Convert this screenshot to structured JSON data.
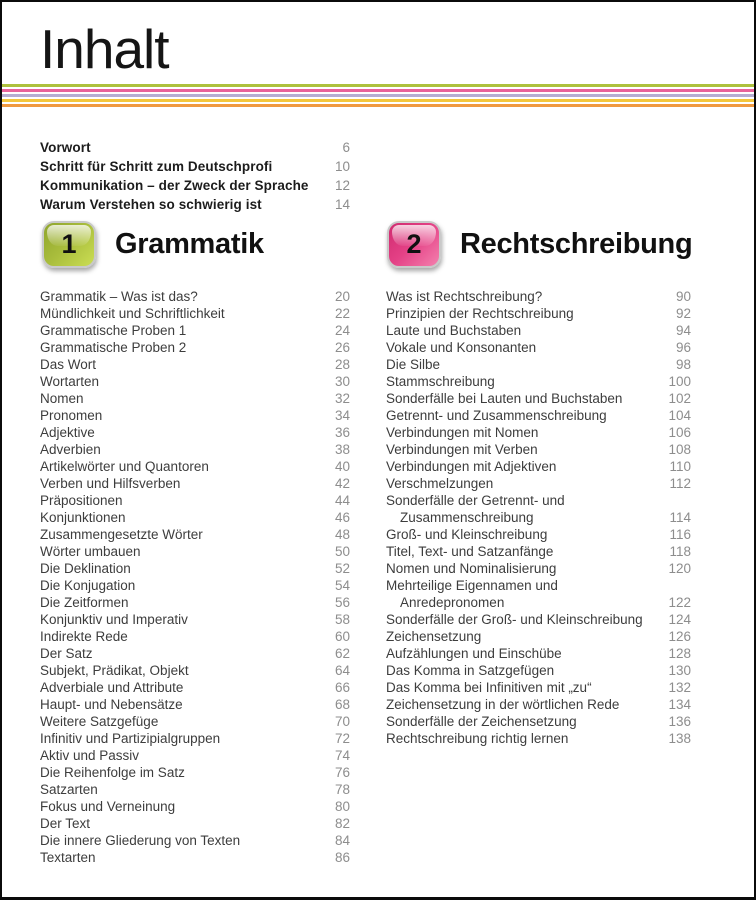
{
  "page": {
    "title": "Inhalt"
  },
  "stripes": {
    "colors": [
      "#aec13d",
      "#e8639a",
      "#b5aed1",
      "#f3c63d",
      "#f0993f"
    ]
  },
  "front_matter": {
    "items": [
      {
        "lines": [
          "Vorwort"
        ],
        "page": "6"
      },
      {
        "lines": [
          "Schritt für Schritt zum Deutschprofi"
        ],
        "page": "10"
      },
      {
        "lines": [
          "Kommunikation – der Zweck der Sprache"
        ],
        "page": "12"
      },
      {
        "lines": [
          "Warum Verstehen so schwierig ist"
        ],
        "page": "14"
      }
    ]
  },
  "chapters": [
    {
      "number": "1",
      "title": "Grammatik",
      "badge_gradient": {
        "from": "#8fa52c",
        "mid": "#a9bd3c",
        "to": "#cbde54"
      },
      "items": [
        {
          "lines": [
            "Grammatik – Was ist das?"
          ],
          "page": "20"
        },
        {
          "lines": [
            "Mündlichkeit und Schriftlichkeit"
          ],
          "page": "22"
        },
        {
          "lines": [
            "Grammatische Proben 1"
          ],
          "page": "24"
        },
        {
          "lines": [
            "Grammatische Proben 2"
          ],
          "page": "26"
        },
        {
          "lines": [
            "Das Wort"
          ],
          "page": "28"
        },
        {
          "lines": [
            "Wortarten"
          ],
          "page": "30"
        },
        {
          "lines": [
            "Nomen"
          ],
          "page": "32"
        },
        {
          "lines": [
            "Pronomen"
          ],
          "page": "34"
        },
        {
          "lines": [
            "Adjektive"
          ],
          "page": "36"
        },
        {
          "lines": [
            "Adverbien"
          ],
          "page": "38"
        },
        {
          "lines": [
            "Artikelwörter und Quantoren"
          ],
          "page": "40"
        },
        {
          "lines": [
            "Verben und Hilfsverben"
          ],
          "page": "42"
        },
        {
          "lines": [
            "Präpositionen"
          ],
          "page": "44"
        },
        {
          "lines": [
            "Konjunktionen"
          ],
          "page": "46"
        },
        {
          "lines": [
            "Zusammengesetzte Wörter"
          ],
          "page": "48"
        },
        {
          "lines": [
            "Wörter umbauen"
          ],
          "page": "50"
        },
        {
          "lines": [
            "Die Deklination"
          ],
          "page": "52"
        },
        {
          "lines": [
            "Die Konjugation"
          ],
          "page": "54"
        },
        {
          "lines": [
            "Die Zeitformen"
          ],
          "page": "56"
        },
        {
          "lines": [
            "Konjunktiv und Imperativ"
          ],
          "page": "58"
        },
        {
          "lines": [
            "Indirekte Rede"
          ],
          "page": "60"
        },
        {
          "lines": [
            "Der Satz"
          ],
          "page": "62"
        },
        {
          "lines": [
            "Subjekt, Prädikat, Objekt"
          ],
          "page": "64"
        },
        {
          "lines": [
            "Adverbiale und Attribute"
          ],
          "page": "66"
        },
        {
          "lines": [
            "Haupt- und Nebensätze"
          ],
          "page": "68"
        },
        {
          "lines": [
            "Weitere Satzgefüge"
          ],
          "page": "70"
        },
        {
          "lines": [
            "Infinitiv und Partizipialgruppen"
          ],
          "page": "72"
        },
        {
          "lines": [
            "Aktiv und Passiv"
          ],
          "page": "74"
        },
        {
          "lines": [
            "Die Reihenfolge im Satz"
          ],
          "page": "76"
        },
        {
          "lines": [
            "Satzarten"
          ],
          "page": "78"
        },
        {
          "lines": [
            "Fokus und Verneinung"
          ],
          "page": "80"
        },
        {
          "lines": [
            "Der Text"
          ],
          "page": "82"
        },
        {
          "lines": [
            "Die innere Gliederung von Texten"
          ],
          "page": "84"
        },
        {
          "lines": [
            "Textarten"
          ],
          "page": "86"
        }
      ]
    },
    {
      "number": "2",
      "title": "Rechtschreibung",
      "badge_gradient": {
        "from": "#d02a6f",
        "mid": "#e44186",
        "to": "#f481ae"
      },
      "items": [
        {
          "lines": [
            "Was ist Rechtschreibung?"
          ],
          "page": "90"
        },
        {
          "lines": [
            "Prinzipien der Rechtschreibung"
          ],
          "page": "92"
        },
        {
          "lines": [
            "Laute und Buchstaben"
          ],
          "page": "94"
        },
        {
          "lines": [
            "Vokale und Konsonanten"
          ],
          "page": "96"
        },
        {
          "lines": [
            "Die Silbe"
          ],
          "page": "98"
        },
        {
          "lines": [
            "Stammschreibung"
          ],
          "page": "100"
        },
        {
          "lines": [
            "Sonderfälle bei Lauten und Buchstaben"
          ],
          "page": "102"
        },
        {
          "lines": [
            "Getrennt- und Zusammenschreibung"
          ],
          "page": "104"
        },
        {
          "lines": [
            "Verbindungen mit Nomen"
          ],
          "page": "106"
        },
        {
          "lines": [
            "Verbindungen mit Verben"
          ],
          "page": "108"
        },
        {
          "lines": [
            "Verbindungen mit Adjektiven"
          ],
          "page": "110"
        },
        {
          "lines": [
            "Verschmelzungen"
          ],
          "page": "112"
        },
        {
          "lines": [
            "Sonderfälle der Getrennt- und",
            "Zusammenschreibung"
          ],
          "page": "114"
        },
        {
          "lines": [
            "Groß- und Kleinschreibung"
          ],
          "page": "116"
        },
        {
          "lines": [
            "Titel, Text- und Satzanfänge"
          ],
          "page": "118"
        },
        {
          "lines": [
            "Nomen und Nominalisierung"
          ],
          "page": "120"
        },
        {
          "lines": [
            "Mehrteilige Eigennamen und",
            "Anredepronomen"
          ],
          "page": "122"
        },
        {
          "lines": [
            "Sonderfälle der Groß- und Kleinschreibung"
          ],
          "page": "124"
        },
        {
          "lines": [
            "Zeichensetzung"
          ],
          "page": "126"
        },
        {
          "lines": [
            "Aufzählungen und Einschübe"
          ],
          "page": "128"
        },
        {
          "lines": [
            "Das Komma in Satzgefügen"
          ],
          "page": "130"
        },
        {
          "lines": [
            "Das Komma bei Infinitiven mit „zu“"
          ],
          "page": "132"
        },
        {
          "lines": [
            "Zeichensetzung in der wörtlichen Rede"
          ],
          "page": "134"
        },
        {
          "lines": [
            "Sonderfälle der Zeichensetzung"
          ],
          "page": "136"
        },
        {
          "lines": [
            "Rechtschreibung richtig lernen"
          ],
          "page": "138"
        }
      ]
    }
  ]
}
